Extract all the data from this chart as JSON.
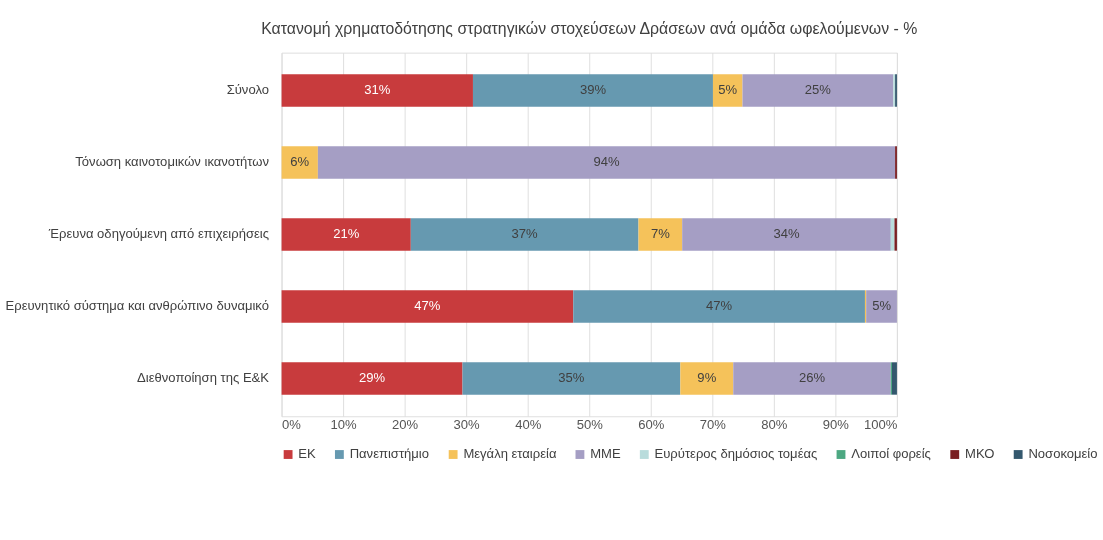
{
  "chart_data": {
    "type": "bar",
    "orientation": "horizontal",
    "stacked": true,
    "title": "Κατανομή χρηματοδότησης στρατηγικών στοχεύσεων Δράσεων ανά ομάδα ωφελούμενων - %",
    "categories": [
      "Σύνολο",
      "Τόνωση καινοτομικών ικανοτήτων",
      "Έρευνα οδηγούμενη από επιχειρήσεις",
      "Ερευνητικό σύστημα και ανθρώπινο δυναμικό",
      "Διεθνοποίηση της Ε&Κ"
    ],
    "series": [
      {
        "name": "ΕΚ",
        "color": "#c83b3d",
        "values": [
          31.1,
          0,
          21.0,
          47.4,
          29.4
        ],
        "value_labels": [
          "31%",
          null,
          "21%",
          "47%",
          "29%"
        ]
      },
      {
        "name": "Πανεπιστήμιο",
        "color": "#6699b0",
        "values": [
          39.0,
          0,
          37.0,
          47.4,
          35.4
        ],
        "value_labels": [
          "39%",
          null,
          "37%",
          "47%",
          "35%"
        ]
      },
      {
        "name": "Μεγάλη εταιρεία",
        "color": "#f5c25a",
        "values": [
          4.8,
          5.9,
          7.1,
          0.2,
          8.6
        ],
        "value_labels": [
          "5%",
          "6%",
          "7%",
          null,
          "9%"
        ]
      },
      {
        "name": "ΜΜΕ",
        "color": "#a59ec4",
        "values": [
          24.5,
          93.8,
          33.9,
          5.0,
          25.6
        ],
        "value_labels": [
          "25%",
          "94%",
          "34%",
          "5%",
          "26%"
        ]
      },
      {
        "name": "Ευρύτερος δημόσιος τομέας",
        "color": "#b9dcdc",
        "values": [
          0.3,
          0,
          0.6,
          0,
          0
        ],
        "value_labels": [
          null,
          null,
          null,
          null,
          null
        ]
      },
      {
        "name": "Λοιποί φορείς",
        "color": "#4da882",
        "values": [
          0,
          0,
          0,
          0,
          0.2
        ],
        "value_labels": [
          null,
          null,
          null,
          null,
          null
        ]
      },
      {
        "name": "ΜΚΟ",
        "color": "#7a1f22",
        "values": [
          0,
          0.3,
          0.4,
          0,
          0
        ],
        "value_labels": [
          null,
          null,
          null,
          null,
          null
        ]
      },
      {
        "name": "Νοσοκομείο",
        "color": "#34586e",
        "values": [
          0.3,
          0,
          0,
          0,
          0.8
        ],
        "value_labels": [
          null,
          null,
          null,
          null,
          null
        ]
      }
    ],
    "xlim": [
      0,
      100
    ],
    "xticks": [
      {
        "value": 0,
        "label": "0%"
      },
      {
        "value": 10,
        "label": "10%"
      },
      {
        "value": 20,
        "label": "20%"
      },
      {
        "value": 30,
        "label": "30%"
      },
      {
        "value": 40,
        "label": "40%"
      },
      {
        "value": 50,
        "label": "50%"
      },
      {
        "value": 60,
        "label": "60%"
      },
      {
        "value": 70,
        "label": "70%"
      },
      {
        "value": 80,
        "label": "80%"
      },
      {
        "value": 90,
        "label": "90%"
      },
      {
        "value": 100,
        "label": "100%"
      }
    ],
    "grid": "x",
    "legend": "bottom"
  }
}
